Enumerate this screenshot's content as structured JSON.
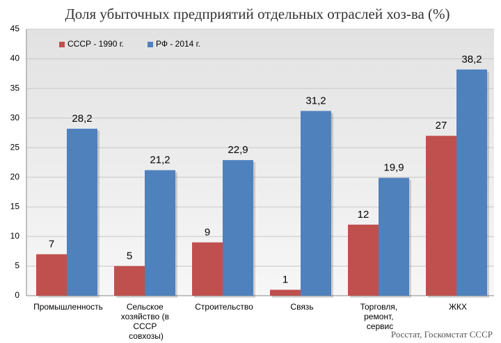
{
  "chart_data": {
    "type": "bar",
    "title": "Доля убыточных предприятий отдельных отраслей хоз-ва (%)",
    "categories": [
      "Промышленность",
      "Сельское хозяйство (в СССР совхозы)",
      "Строительство",
      "Связь",
      "Торговля, ремонт, сервис",
      "ЖКХ"
    ],
    "series": [
      {
        "name": "СССР - 1990 г.",
        "color": "#c0504d",
        "values": [
          7,
          5,
          9,
          1,
          12,
          27
        ]
      },
      {
        "name": "РФ - 2014 г.",
        "color": "#4f81bd",
        "values": [
          28.2,
          21.2,
          22.9,
          31.2,
          19.9,
          38.2
        ],
        "value_labels": [
          "28,2",
          "21,2",
          "22,9",
          "31,2",
          "19,9",
          "38,2"
        ]
      }
    ],
    "ylim": [
      0,
      45
    ],
    "yticks": [
      0,
      5,
      10,
      15,
      20,
      25,
      30,
      35,
      40,
      45
    ],
    "grid": true,
    "legend": "top-left",
    "source": "Росстат, Госкомстат СССР"
  }
}
